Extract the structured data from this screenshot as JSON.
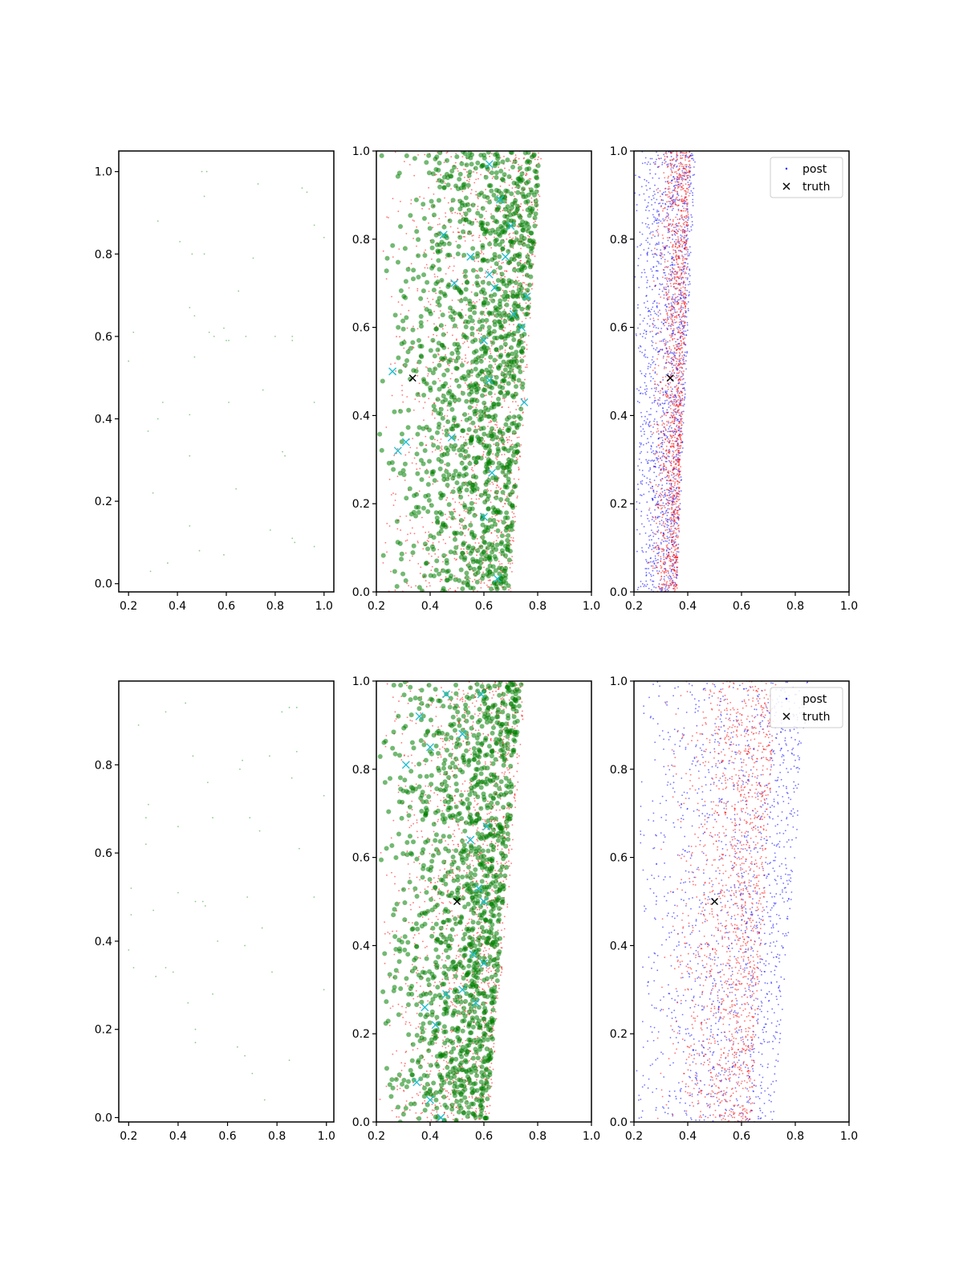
{
  "chart_data": [
    {
      "panel": "top-left",
      "type": "scatter",
      "xlim": [
        0.16,
        1.04
      ],
      "ylim": [
        -0.02,
        1.05
      ],
      "xticks": [
        "0.2",
        "0.4",
        "0.6",
        "0.8",
        "1.0"
      ],
      "yticks": [
        "0.0",
        "0.2",
        "0.4",
        "0.6",
        "0.8",
        "1.0"
      ],
      "grid": false,
      "series": [
        {
          "color": "#2ca02c",
          "marker": "point",
          "points": [
            [
              0.5,
              1.0
            ],
            [
              0.52,
              1.0
            ],
            [
              0.51,
              0.94
            ],
            [
              0.73,
              0.97
            ],
            [
              0.91,
              0.96
            ],
            [
              0.93,
              0.95
            ],
            [
              0.96,
              0.87
            ],
            [
              1.0,
              0.84
            ],
            [
              0.32,
              0.88
            ],
            [
              0.41,
              0.83
            ],
            [
              0.46,
              0.8
            ],
            [
              0.51,
              0.8
            ],
            [
              0.71,
              0.79
            ],
            [
              0.65,
              0.71
            ],
            [
              0.45,
              0.67
            ],
            [
              0.47,
              0.65
            ],
            [
              0.22,
              0.61
            ],
            [
              0.53,
              0.61
            ],
            [
              0.55,
              0.6
            ],
            [
              0.59,
              0.62
            ],
            [
              0.6,
              0.59
            ],
            [
              0.61,
              0.59
            ],
            [
              0.68,
              0.6
            ],
            [
              0.8,
              0.6
            ],
            [
              0.87,
              0.6
            ],
            [
              0.87,
              0.59
            ],
            [
              0.2,
              0.54
            ],
            [
              0.47,
              0.55
            ],
            [
              0.34,
              0.44
            ],
            [
              0.61,
              0.44
            ],
            [
              0.75,
              0.47
            ],
            [
              0.96,
              0.44
            ],
            [
              0.45,
              0.41
            ],
            [
              0.32,
              0.4
            ],
            [
              0.28,
              0.37
            ],
            [
              0.83,
              0.32
            ],
            [
              0.84,
              0.31
            ],
            [
              0.45,
              0.31
            ],
            [
              0.3,
              0.22
            ],
            [
              0.64,
              0.23
            ],
            [
              0.45,
              0.14
            ],
            [
              0.78,
              0.13
            ],
            [
              0.87,
              0.11
            ],
            [
              0.88,
              0.1
            ],
            [
              0.96,
              0.09
            ],
            [
              0.49,
              0.08
            ],
            [
              0.59,
              0.07
            ],
            [
              0.36,
              0.05
            ],
            [
              0.29,
              0.03
            ]
          ]
        }
      ]
    },
    {
      "panel": "top-middle",
      "type": "scatter",
      "xlim": [
        0.2,
        1.0
      ],
      "ylim": [
        0.0,
        1.0
      ],
      "xticks": [
        "0.2",
        "0.4",
        "0.6",
        "0.8",
        "1.0"
      ],
      "yticks": [
        "0.0",
        "0.2",
        "0.4",
        "0.6",
        "0.8",
        "1.0"
      ],
      "grid": false,
      "series": [
        {
          "color": "#ff0000",
          "marker": "point",
          "region": {
            "left_at_y0": 0.2,
            "left_at_y1": 0.2,
            "right_at_y0": 0.7,
            "right_at_y1": 0.82,
            "bias": 0.75
          }
        },
        {
          "color": "#008000",
          "marker": "circle",
          "region": {
            "left_at_y0": 0.2,
            "left_at_y1": 0.2,
            "right_at_y0": 0.69,
            "right_at_y1": 0.81,
            "bias": 0.75
          }
        },
        {
          "color": "#17becf",
          "marker": "x",
          "points": [
            [
              0.26,
              0.5
            ],
            [
              0.28,
              0.32
            ],
            [
              0.31,
              0.34
            ],
            [
              0.45,
              0.81
            ],
            [
              0.49,
              0.7
            ],
            [
              0.62,
              0.97
            ],
            [
              0.62,
              0.72
            ],
            [
              0.64,
              0.69
            ],
            [
              0.7,
              0.83
            ],
            [
              0.71,
              0.63
            ],
            [
              0.75,
              0.43
            ],
            [
              0.76,
              0.67
            ],
            [
              0.74,
              0.6
            ],
            [
              0.62,
              0.48
            ],
            [
              0.63,
              0.27
            ],
            [
              0.6,
              0.57
            ],
            [
              0.66,
              0.89
            ],
            [
              0.48,
              0.35
            ],
            [
              0.6,
              0.17
            ],
            [
              0.65,
              0.03
            ],
            [
              0.68,
              0.76
            ],
            [
              0.55,
              0.76
            ]
          ]
        },
        {
          "name": "truth",
          "color": "#000000",
          "marker": "x",
          "points": [
            [
              0.335,
              0.485
            ]
          ]
        }
      ]
    },
    {
      "panel": "top-right",
      "type": "scatter",
      "xlim": [
        0.2,
        1.0
      ],
      "ylim": [
        0.0,
        1.0
      ],
      "xticks": [
        "0.2",
        "0.4",
        "0.6",
        "0.8",
        "1.0"
      ],
      "yticks": [
        "0.0",
        "0.2",
        "0.4",
        "0.6",
        "0.8",
        "1.0"
      ],
      "grid": false,
      "legend": {
        "placement": "top-right",
        "entries": [
          "post",
          "truth"
        ]
      },
      "series": [
        {
          "name": "post",
          "color": "#0000ff",
          "marker": "point",
          "region": {
            "left_at_y0": 0.21,
            "left_at_y1": 0.2,
            "right_at_y0": 0.36,
            "right_at_y1": 0.43,
            "bias": 0.5
          }
        },
        {
          "color": "#ff0000",
          "marker": "point",
          "region": {
            "left_at_y0": 0.25,
            "left_at_y1": 0.26,
            "right_at_y0": 0.36,
            "right_at_y1": 0.41,
            "bias": 0.9
          }
        },
        {
          "name": "truth",
          "color": "#000000",
          "marker": "x",
          "points": [
            [
              0.335,
              0.485
            ]
          ]
        }
      ]
    },
    {
      "panel": "bottom-left",
      "type": "scatter",
      "xlim": [
        0.16,
        1.03
      ],
      "ylim": [
        -0.01,
        0.99
      ],
      "xticks": [
        "0.2",
        "0.4",
        "0.6",
        "0.8",
        "1.0"
      ],
      "yticks": [
        "0.0",
        "0.2",
        "0.4",
        "0.6",
        "0.8"
      ],
      "grid": false,
      "series": [
        {
          "color": "#2ca02c",
          "marker": "point",
          "points": [
            [
              0.43,
              0.94
            ],
            [
              0.35,
              0.92
            ],
            [
              0.82,
              0.92
            ],
            [
              0.85,
              0.93
            ],
            [
              0.88,
              0.93
            ],
            [
              0.24,
              0.89
            ],
            [
              0.46,
              0.82
            ],
            [
              0.66,
              0.81
            ],
            [
              0.65,
              0.79
            ],
            [
              0.77,
              0.82
            ],
            [
              0.86,
              0.77
            ],
            [
              0.88,
              0.83
            ],
            [
              0.52,
              0.76
            ],
            [
              0.99,
              0.73
            ],
            [
              0.28,
              0.71
            ],
            [
              0.27,
              0.68
            ],
            [
              0.54,
              0.68
            ],
            [
              0.69,
              0.68
            ],
            [
              0.4,
              0.66
            ],
            [
              0.73,
              0.65
            ],
            [
              0.27,
              0.62
            ],
            [
              0.89,
              0.61
            ],
            [
              0.21,
              0.52
            ],
            [
              0.4,
              0.51
            ],
            [
              0.47,
              0.49
            ],
            [
              0.5,
              0.49
            ],
            [
              0.51,
              0.48
            ],
            [
              0.68,
              0.5
            ],
            [
              0.95,
              0.5
            ],
            [
              0.21,
              0.46
            ],
            [
              0.3,
              0.47
            ],
            [
              0.74,
              0.43
            ],
            [
              0.56,
              0.4
            ],
            [
              0.67,
              0.39
            ],
            [
              0.2,
              0.38
            ],
            [
              0.22,
              0.34
            ],
            [
              0.31,
              0.32
            ],
            [
              0.35,
              0.34
            ],
            [
              0.38,
              0.33
            ],
            [
              0.78,
              0.33
            ],
            [
              0.54,
              0.28
            ],
            [
              0.99,
              0.29
            ],
            [
              0.44,
              0.26
            ],
            [
              0.47,
              0.2
            ],
            [
              0.47,
              0.17
            ],
            [
              0.64,
              0.16
            ],
            [
              0.67,
              0.14
            ],
            [
              0.85,
              0.13
            ],
            [
              0.7,
              0.1
            ],
            [
              0.75,
              0.04
            ]
          ]
        }
      ]
    },
    {
      "panel": "bottom-middle",
      "type": "scatter",
      "xlim": [
        0.2,
        1.0
      ],
      "ylim": [
        0.0,
        1.0
      ],
      "xticks": [
        "0.2",
        "0.4",
        "0.6",
        "0.8",
        "1.0"
      ],
      "yticks": [
        "0.0",
        "0.2",
        "0.4",
        "0.6",
        "0.8",
        "1.0"
      ],
      "grid": false,
      "series": [
        {
          "color": "#ff0000",
          "marker": "point",
          "region": {
            "left_at_y0": 0.2,
            "left_at_y1": 0.2,
            "right_at_y0": 0.62,
            "right_at_y1": 0.76,
            "bias": 0.75
          }
        },
        {
          "color": "#008000",
          "marker": "circle",
          "region": {
            "left_at_y0": 0.2,
            "left_at_y1": 0.2,
            "right_at_y0": 0.61,
            "right_at_y1": 0.74,
            "bias": 0.75
          }
        },
        {
          "color": "#17becf",
          "marker": "x",
          "points": [
            [
              0.31,
              0.81
            ],
            [
              0.36,
              0.92
            ],
            [
              0.4,
              0.85
            ],
            [
              0.46,
              0.97
            ],
            [
              0.52,
              0.88
            ],
            [
              0.55,
              0.64
            ],
            [
              0.58,
              0.53
            ],
            [
              0.6,
              0.5
            ],
            [
              0.56,
              0.38
            ],
            [
              0.6,
              0.36
            ],
            [
              0.52,
              0.3
            ],
            [
              0.46,
              0.29
            ],
            [
              0.38,
              0.26
            ],
            [
              0.42,
              0.22
            ],
            [
              0.4,
              0.05
            ],
            [
              0.44,
              0.01
            ],
            [
              0.57,
              0.27
            ],
            [
              0.35,
              0.09
            ],
            [
              0.61,
              0.67
            ],
            [
              0.59,
              0.97
            ]
          ]
        },
        {
          "name": "truth",
          "color": "#000000",
          "marker": "x",
          "points": [
            [
              0.5,
              0.5
            ]
          ]
        }
      ]
    },
    {
      "panel": "bottom-right",
      "type": "scatter",
      "xlim": [
        0.2,
        1.0
      ],
      "ylim": [
        0.0,
        1.0
      ],
      "xticks": [
        "0.2",
        "0.4",
        "0.6",
        "0.8",
        "1.0"
      ],
      "yticks": [
        "0.0",
        "0.2",
        "0.4",
        "0.6",
        "0.8",
        "1.0"
      ],
      "grid": false,
      "legend": {
        "placement": "top-right",
        "entries": [
          "post",
          "truth"
        ]
      },
      "series": [
        {
          "name": "post",
          "color": "#0000ff",
          "marker": "point",
          "region": {
            "left_at_y0": 0.2,
            "left_at_y1": 0.22,
            "right_at_y0": 0.72,
            "right_at_y1": 0.85,
            "bias": 0.5
          }
        },
        {
          "color": "#ff0000",
          "marker": "point",
          "region": {
            "left_at_y0": 0.24,
            "left_at_y1": 0.3,
            "right_at_y0": 0.64,
            "right_at_y1": 0.73,
            "bias": 0.85
          }
        },
        {
          "name": "truth",
          "color": "#000000",
          "marker": "x",
          "points": [
            [
              0.5,
              0.5
            ]
          ]
        }
      ]
    }
  ]
}
